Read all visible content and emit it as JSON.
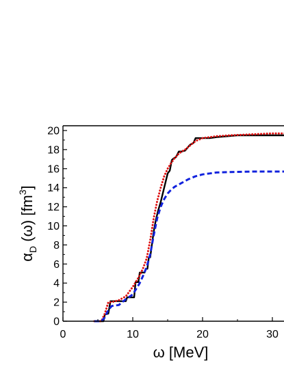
{
  "chart_data": {
    "type": "line",
    "xlabel": "ω [MeV]",
    "ylabel": {
      "base": "α",
      "subscript": "D",
      "middle": " (ω) [fm",
      "superscript": "3",
      "end": "]"
    },
    "xlim": [
      0,
      33
    ],
    "ylim": [
      0,
      20.5
    ],
    "xticks": [
      0,
      10,
      20,
      30
    ],
    "yticks": [
      0,
      2,
      4,
      6,
      8,
      10,
      12,
      14,
      16,
      18,
      20
    ],
    "grid": false,
    "series": [
      {
        "color": "#000000",
        "style": "solid",
        "x": [
          4.5,
          5.8,
          6.0,
          6.5,
          6.8,
          9.0,
          9.2,
          10.2,
          10.4,
          10.8,
          11.0,
          11.7,
          11.9,
          12.1,
          12.3,
          12.5,
          12.7,
          13.0,
          13.3,
          13.6,
          14.0,
          14.5,
          15.0,
          15.3,
          15.6,
          15.9,
          16.2,
          16.6,
          17.0,
          17.5,
          18.2,
          18.7,
          19.0,
          20.0,
          21.0,
          22.0,
          25.0,
          28.0,
          33.0
        ],
        "y": [
          0,
          0,
          0.7,
          0.8,
          2.1,
          2.1,
          2.5,
          2.5,
          4.1,
          4.1,
          5.1,
          5.1,
          5.5,
          5.5,
          6.7,
          6.7,
          7.8,
          9.4,
          10.6,
          11.5,
          12.5,
          14.0,
          15.5,
          15.8,
          16.9,
          17.1,
          17.2,
          17.8,
          17.8,
          17.9,
          18.5,
          18.7,
          19.2,
          19.2,
          19.2,
          19.3,
          19.5,
          19.5,
          19.5
        ]
      },
      {
        "color": "#dd1111",
        "style": "dotted",
        "x": [
          4.5,
          5.5,
          6.0,
          6.5,
          7.0,
          8.0,
          9.0,
          10.0,
          11.0,
          11.5,
          12.0,
          12.5,
          13.0,
          13.5,
          14.0,
          14.5,
          15.0,
          15.5,
          16.0,
          16.5,
          17.0,
          17.5,
          18.0,
          19.0,
          20.0,
          21.0,
          22.0,
          24.0,
          27.0,
          30.0,
          33.0
        ],
        "y": [
          0,
          0,
          0.8,
          2.0,
          2.0,
          2.2,
          2.6,
          3.6,
          4.8,
          5.6,
          6.6,
          8.5,
          10.8,
          12.6,
          14.0,
          15.2,
          16.0,
          16.6,
          17.1,
          17.5,
          17.8,
          18.0,
          18.3,
          18.9,
          19.2,
          19.3,
          19.4,
          19.5,
          19.6,
          19.7,
          19.7
        ]
      },
      {
        "color": "#1122dd",
        "style": "dashed",
        "x": [
          4.5,
          5.5,
          6.0,
          6.5,
          7.0,
          8.0,
          9.0,
          10.0,
          11.0,
          11.5,
          12.0,
          12.5,
          13.0,
          13.5,
          14.0,
          14.5,
          15.0,
          15.5,
          16.0,
          17.0,
          18.0,
          19.0,
          20.0,
          21.0,
          22.0,
          24.0,
          27.0,
          30.0,
          33.0
        ],
        "y": [
          0,
          0,
          0.4,
          1.2,
          1.6,
          1.7,
          2.3,
          2.8,
          4.0,
          4.8,
          5.7,
          7.0,
          9.0,
          10.8,
          12.0,
          12.8,
          13.4,
          13.8,
          14.1,
          14.5,
          14.9,
          15.2,
          15.4,
          15.5,
          15.6,
          15.65,
          15.7,
          15.7,
          15.7
        ]
      }
    ]
  }
}
